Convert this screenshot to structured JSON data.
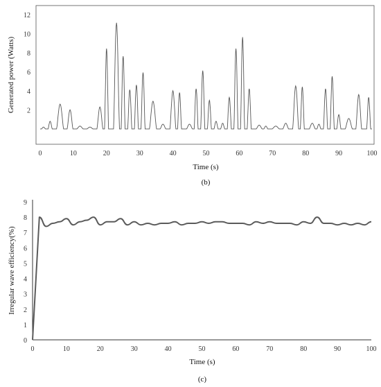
{
  "chart_data": [
    {
      "type": "line",
      "panel_label": "(b)",
      "xlabel": "Time (s)",
      "ylabel": "Generated power (Watts)",
      "xlim": [
        0,
        100
      ],
      "ylim": [
        -1.5,
        13
      ],
      "xticks": [
        0,
        10,
        20,
        30,
        40,
        50,
        60,
        70,
        80,
        90,
        100
      ],
      "yticks": [
        2,
        4,
        6,
        8,
        10,
        12
      ],
      "baseline": 0.1,
      "color": "#555555",
      "series": [
        {
          "x": [
            1,
            3,
            6,
            9,
            12,
            15,
            18,
            20,
            23,
            25,
            27,
            29,
            31,
            34,
            37,
            40,
            42,
            45,
            47,
            49,
            51,
            53,
            55,
            57,
            59,
            61,
            63,
            66,
            68,
            71,
            74,
            77,
            79,
            82,
            84,
            86,
            88,
            90,
            93,
            96,
            99
          ],
          "values": [
            0.3,
            0.9,
            2.7,
            2.1,
            0.4,
            0.3,
            2.4,
            8.5,
            11.2,
            7.7,
            4.2,
            4.7,
            6.0,
            3.0,
            0.6,
            4.1,
            3.9,
            0.6,
            4.3,
            6.2,
            3.1,
            0.9,
            0.7,
            3.4,
            8.5,
            9.7,
            4.3,
            0.5,
            0.4,
            0.4,
            0.7,
            4.6,
            4.5,
            0.7,
            0.6,
            4.3,
            5.6,
            1.6,
            1.2,
            3.7,
            3.4
          ]
        }
      ]
    },
    {
      "type": "line",
      "panel_label": "(c)",
      "xlabel": "Time (s)",
      "ylabel": "Irregular wave efficiency(%)",
      "xlim": [
        0,
        100
      ],
      "ylim": [
        0,
        9
      ],
      "xticks": [
        0,
        10,
        20,
        30,
        40,
        50,
        60,
        70,
        80,
        90,
        100
      ],
      "yticks": [
        0,
        1,
        2,
        3,
        4,
        5,
        6,
        7,
        8,
        9
      ],
      "color": "#5a5a5a",
      "series": [
        {
          "x": [
            0,
            2,
            4,
            6,
            8,
            10,
            12,
            14,
            16,
            18,
            20,
            22,
            24,
            26,
            28,
            30,
            32,
            34,
            36,
            38,
            40,
            42,
            44,
            46,
            48,
            50,
            52,
            54,
            56,
            58,
            60,
            62,
            64,
            66,
            68,
            70,
            72,
            74,
            76,
            78,
            80,
            82,
            84,
            86,
            88,
            90,
            92,
            94,
            96,
            98,
            100
          ],
          "values": [
            0,
            8.0,
            7.4,
            7.6,
            7.7,
            7.9,
            7.5,
            7.7,
            7.8,
            8.0,
            7.5,
            7.7,
            7.7,
            7.9,
            7.5,
            7.7,
            7.5,
            7.6,
            7.5,
            7.6,
            7.6,
            7.7,
            7.5,
            7.6,
            7.6,
            7.7,
            7.6,
            7.7,
            7.7,
            7.6,
            7.6,
            7.6,
            7.5,
            7.7,
            7.6,
            7.7,
            7.6,
            7.6,
            7.6,
            7.5,
            7.7,
            7.6,
            8.0,
            7.6,
            7.6,
            7.5,
            7.6,
            7.5,
            7.6,
            7.5,
            7.7
          ]
        }
      ]
    }
  ]
}
